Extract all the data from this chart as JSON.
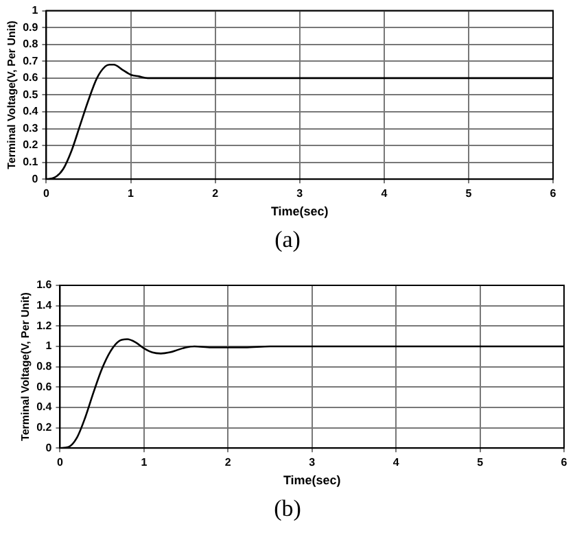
{
  "chart_data": [
    {
      "type": "line",
      "xlabel": "Time(sec)",
      "ylabel": "Terminal Voltage(V, Per Unit)",
      "annotations": [
        "(a)"
      ],
      "xlim": [
        0,
        6
      ],
      "xticks": [
        0,
        1,
        2,
        3,
        4,
        5,
        6
      ],
      "ylim": [
        0,
        1
      ],
      "yticks": [
        0,
        0.1,
        0.2,
        0.3,
        0.4,
        0.5,
        0.6,
        0.7,
        0.8,
        0.9,
        1
      ],
      "grid": true,
      "legend": false,
      "marker": "none",
      "line_style": "solid",
      "series": [
        {
          "color": "#000000",
          "x": [
            0,
            0.1,
            0.2,
            0.3,
            0.4,
            0.5,
            0.6,
            0.7,
            0.75,
            0.8,
            0.9,
            1.0,
            1.1,
            1.2,
            1.4,
            1.6,
            2,
            6
          ],
          "values": [
            0,
            0.01,
            0.06,
            0.17,
            0.32,
            0.47,
            0.6,
            0.67,
            0.68,
            0.68,
            0.65,
            0.62,
            0.61,
            0.6,
            0.6,
            0.6,
            0.6,
            0.6
          ]
        }
      ]
    },
    {
      "type": "line",
      "xlabel": "Time(sec)",
      "ylabel": "Terminal Voltage(V, Per Unit)",
      "annotations": [
        "(b)"
      ],
      "xlim": [
        0,
        6
      ],
      "xticks": [
        0,
        1,
        2,
        3,
        4,
        5,
        6
      ],
      "ylim": [
        0,
        1.6
      ],
      "yticks": [
        0,
        0.2,
        0.4,
        0.6,
        0.8,
        1,
        1.2,
        1.4,
        1.6
      ],
      "grid": true,
      "legend": false,
      "marker": "none",
      "line_style": "solid",
      "series": [
        {
          "color": "#000000",
          "x": [
            0,
            0.1,
            0.2,
            0.3,
            0.4,
            0.5,
            0.6,
            0.7,
            0.8,
            0.9,
            1.0,
            1.1,
            1.2,
            1.3,
            1.5,
            1.6,
            1.8,
            2,
            2.2,
            2.5,
            3,
            6
          ],
          "values": [
            0,
            0.01,
            0.1,
            0.3,
            0.55,
            0.78,
            0.95,
            1.05,
            1.07,
            1.04,
            0.98,
            0.94,
            0.93,
            0.94,
            0.99,
            1.0,
            0.99,
            0.99,
            0.99,
            1.0,
            1,
            1
          ]
        }
      ]
    }
  ]
}
